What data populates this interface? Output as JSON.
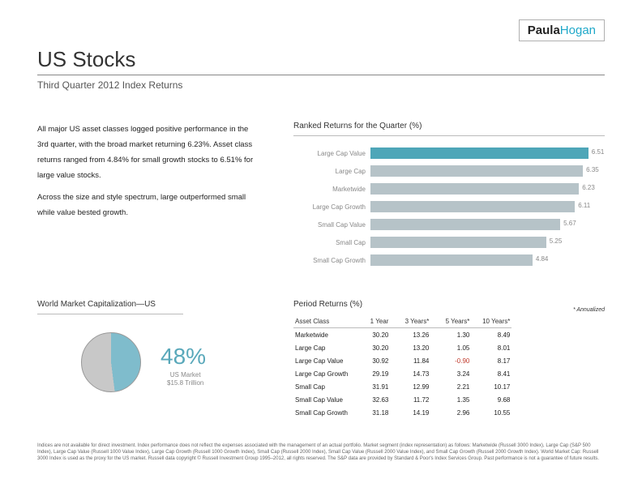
{
  "logo": {
    "first": "Paula",
    "last": "Hogan"
  },
  "title": "US Stocks",
  "subtitle": "Third Quarter 2012 Index Returns",
  "paragraphs": [
    "All major US asset classes logged positive performance in the 3rd quarter, with the broad market returning 6.23%. Asset class returns ranged from 4.84% for small growth stocks to 6.51% for large value stocks.",
    "Across the size and style spectrum, large outperformed small while value bested growth."
  ],
  "ranked_title": "Ranked Returns for the Quarter (%)",
  "ranked_chart": {
    "type": "bar",
    "items": [
      {
        "label": "Large Cap Value",
        "value": 6.51
      },
      {
        "label": "Large Cap",
        "value": 6.35
      },
      {
        "label": "Marketwide",
        "value": 6.23
      },
      {
        "label": "Large Cap Growth",
        "value": 6.11
      },
      {
        "label": "Small Cap Value",
        "value": 5.67
      },
      {
        "label": "Small Cap",
        "value": 5.25
      },
      {
        "label": "Small Cap Growth",
        "value": 4.84
      }
    ],
    "max": 7.0,
    "highlight_color": "#4ea6b8",
    "bar_color": "#b6c3c8",
    "label_color": "#888888"
  },
  "cap_title": "World Market Capitalization—US",
  "pie": {
    "type": "pie",
    "percent": 48,
    "percent_text": "48%",
    "sub1": "US Market",
    "sub2": "$15.8 Trillion",
    "slice_color": "#7fbccc",
    "rest_color": "#c8c8c8"
  },
  "period_title": "Period Returns (%)",
  "annualized": "* Annualized",
  "table": {
    "headers": [
      "Asset Class",
      "1 Year",
      "3 Years*",
      "5 Years*",
      "10 Years*"
    ],
    "rows": [
      [
        "Marketwide",
        "30.20",
        "13.26",
        "1.30",
        "8.49"
      ],
      [
        "Large Cap",
        "30.20",
        "13.20",
        "1.05",
        "8.01"
      ],
      [
        "Large Cap Value",
        "30.92",
        "11.84",
        "-0.90",
        "8.17"
      ],
      [
        "Large Cap Growth",
        "29.19",
        "14.73",
        "3.24",
        "8.41"
      ],
      [
        "Small Cap",
        "31.91",
        "12.99",
        "2.21",
        "10.17"
      ],
      [
        "Small Cap Value",
        "32.63",
        "11.72",
        "1.35",
        "9.68"
      ],
      [
        "Small Cap Growth",
        "31.18",
        "14.19",
        "2.96",
        "10.55"
      ]
    ]
  },
  "footnote": "Indices are not available for direct investment. Index performance does not reflect the expenses associated with the management of an actual portfolio. Market segment (index representation) as follows: Marketwide (Russell 3000 Index), Large Cap (S&P 500 Index), Large Cap Value (Russell 1000 Value Index), Large Cap Growth (Russell 1000 Growth Index), Small Cap (Russell 2000 Index), Small Cap Value (Russell 2000 Value Index), and Small Cap Growth (Russell 2000 Growth Index). World Market Cap: Russell 3000 Index is used as the proxy for the US market. Russell data copyright © Russell Investment Group 1995–2012, all rights reserved. The S&P data are provided by Standard & Poor's Index Services Group. Past performance is not a guarantee of future results."
}
